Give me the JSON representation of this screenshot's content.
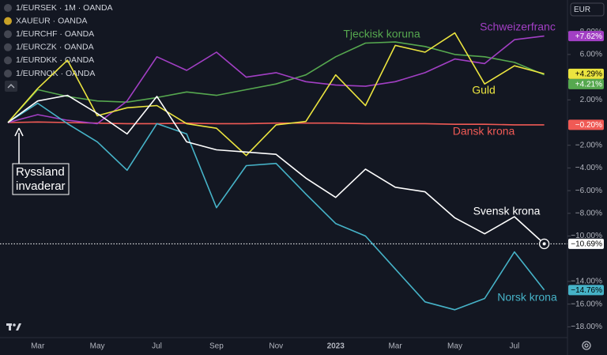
{
  "chart_data": {
    "type": "line",
    "currency": "EUR",
    "categories": [
      null,
      "Mar",
      null,
      "May",
      null,
      "Jul",
      null,
      "Sep",
      null,
      "Nov",
      null,
      "2023",
      null,
      "Mar",
      null,
      "May",
      null,
      "Jul",
      null
    ],
    "ylim": [
      -19.16,
      10.8
    ],
    "yticks": [
      {
        "value": 8,
        "label": "8.00%"
      },
      {
        "value": 6,
        "label": "6.00%"
      },
      {
        "value": 2,
        "label": "2.00%"
      },
      {
        "value": -2,
        "label": "−2.00%"
      },
      {
        "value": -4,
        "label": "−4.00%"
      },
      {
        "value": -6,
        "label": "−6.00%"
      },
      {
        "value": -8,
        "label": "−8.00%"
      },
      {
        "value": -10,
        "label": "−10.00%"
      },
      {
        "value": -14,
        "label": "−14.00%"
      },
      {
        "value": -16,
        "label": "−16.00%"
      },
      {
        "value": -18,
        "label": "−18.00%"
      }
    ],
    "grid": false,
    "annotation": [
      "Ryssland",
      "invaderar"
    ],
    "series": [
      {
        "name": "Svensk krona",
        "symbol": "1/EURSEK · 1M · OANDA",
        "color": "#ffffff",
        "label_text": "#000000",
        "values": [
          0,
          1.9,
          2.4,
          0.8,
          -1.0,
          2.3,
          -1.7,
          -2.4,
          -2.6,
          -2.8,
          -4.9,
          -6.6,
          -4.1,
          -5.7,
          -6.1,
          -8.4,
          -9.8,
          -8.3,
          -10.69
        ],
        "value_labels": [
          null,
          null,
          null,
          null,
          null,
          null,
          null,
          null,
          null,
          null,
          null,
          null,
          null,
          null,
          null,
          null,
          null,
          null,
          "−10.69%"
        ]
      },
      {
        "name": "Guld",
        "symbol": "XAUEUR · OANDA",
        "color": "#ebe43f",
        "label_text": "#000000",
        "values": [
          0,
          3.0,
          5.5,
          0.6,
          1.3,
          1.5,
          -0.1,
          -0.5,
          -2.9,
          -0.2,
          0.1,
          4.2,
          1.5,
          6.8,
          6.2,
          7.9,
          3.4,
          5.0,
          4.29
        ],
        "value_labels": [
          null,
          null,
          null,
          null,
          null,
          null,
          null,
          null,
          null,
          null,
          null,
          null,
          null,
          null,
          null,
          null,
          null,
          null,
          "+4.29%"
        ]
      },
      {
        "name": "Schweizerfranc",
        "symbol": "1/EURCHF · OANDA",
        "color": "#a23fc4",
        "label_text": "#ffffff",
        "values": [
          0,
          0.7,
          0.2,
          -0.1,
          1.9,
          5.8,
          4.6,
          6.2,
          4.0,
          4.4,
          3.6,
          3.3,
          3.2,
          3.6,
          4.4,
          5.6,
          5.2,
          7.3,
          7.62
        ],
        "value_labels": [
          null,
          null,
          null,
          null,
          null,
          null,
          null,
          null,
          null,
          null,
          null,
          null,
          null,
          null,
          null,
          null,
          null,
          null,
          "+7.62%"
        ]
      },
      {
        "name": "Tjeckisk koruna",
        "symbol": "1/EURCZK · OANDA",
        "color": "#56a84f",
        "label_text": "#ffffff",
        "values": [
          0,
          2.9,
          2.3,
          1.9,
          1.8,
          2.2,
          2.7,
          2.4,
          2.9,
          3.4,
          4.2,
          5.8,
          7.0,
          7.1,
          6.7,
          6.0,
          5.8,
          5.3,
          4.21
        ],
        "value_labels": [
          null,
          null,
          null,
          null,
          null,
          null,
          null,
          null,
          null,
          null,
          null,
          null,
          null,
          null,
          null,
          null,
          null,
          null,
          "+4.21%"
        ]
      },
      {
        "name": "Dansk krona",
        "symbol": "1/EURDKK · OANDA",
        "color": "#f05a55",
        "label_text": "#ffffff",
        "values": [
          0,
          0.05,
          0,
          -0.05,
          -0.1,
          -0.1,
          -0.05,
          -0.1,
          -0.1,
          -0.05,
          -0.05,
          -0.05,
          -0.1,
          -0.1,
          -0.1,
          -0.15,
          -0.15,
          -0.2,
          -0.2
        ],
        "value_labels": [
          null,
          null,
          null,
          null,
          null,
          null,
          null,
          null,
          null,
          null,
          null,
          null,
          null,
          null,
          null,
          null,
          null,
          null,
          "−0.20%"
        ]
      },
      {
        "name": "Norsk krona",
        "symbol": "1/EURNOK · OANDA",
        "color": "#46b3c8",
        "label_text": "#000000",
        "values": [
          0,
          1.7,
          -0.1,
          -1.7,
          -4.2,
          -0.1,
          -1.0,
          -7.5,
          -3.8,
          -3.6,
          -6.3,
          -8.9,
          -10.0,
          -12.9,
          -15.8,
          -16.5,
          -15.5,
          -11.4,
          -14.76
        ],
        "value_labels": [
          null,
          null,
          null,
          null,
          null,
          null,
          null,
          null,
          null,
          null,
          null,
          null,
          null,
          null,
          null,
          null,
          null,
          null,
          "−14.76%"
        ]
      }
    ]
  }
}
